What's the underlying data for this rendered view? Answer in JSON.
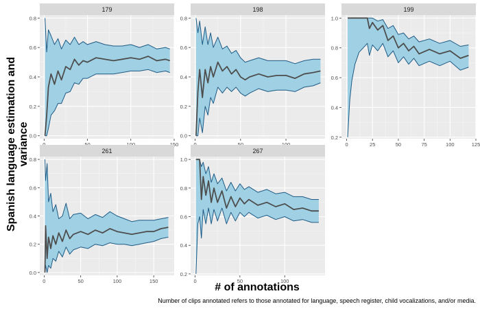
{
  "figure": {
    "ylabel": "Spanish language estimation and variance",
    "xlabel": "# of annotations",
    "caption": "Number of clips annotated refers to those annotated for language, speech register, child vocalizations, and/or media."
  },
  "colors": {
    "ribbon": "#9fd0e3",
    "ribbon_edge": "#1e5a85",
    "mean_line": "#4d4d4d",
    "panel_bg": "#ebebeb",
    "strip_bg": "#d9d9d9",
    "grid_major": "#ffffff"
  },
  "chart_data": [
    {
      "type": "line",
      "panel": "179",
      "xlim": [
        -5,
        150
      ],
      "ylim": [
        -0.02,
        0.82
      ],
      "xticks": [
        0,
        50,
        100,
        150
      ],
      "yticks": [
        0.0,
        0.2,
        0.4,
        0.6,
        0.8
      ],
      "ytick_labels": [
        "0.0",
        "0.2",
        "0.4",
        "0.6",
        "0.8"
      ],
      "series": [
        {
          "role": "mean",
          "x": [
            1,
            3,
            5,
            8,
            12,
            16,
            20,
            25,
            30,
            35,
            40,
            45,
            50,
            60,
            70,
            80,
            90,
            100,
            110,
            120,
            130,
            140,
            145
          ],
          "y": [
            0.0,
            0.14,
            0.33,
            0.42,
            0.35,
            0.44,
            0.38,
            0.47,
            0.45,
            0.52,
            0.48,
            0.51,
            0.5,
            0.53,
            0.52,
            0.51,
            0.52,
            0.53,
            0.52,
            0.54,
            0.51,
            0.52,
            0.51
          ]
        },
        {
          "role": "upper",
          "x": [
            1,
            3,
            5,
            8,
            12,
            16,
            20,
            25,
            30,
            35,
            40,
            45,
            50,
            60,
            70,
            80,
            90,
            100,
            110,
            120,
            130,
            140,
            145
          ],
          "y": [
            0.8,
            0.57,
            0.72,
            0.68,
            0.62,
            0.66,
            0.59,
            0.65,
            0.62,
            0.67,
            0.62,
            0.64,
            0.62,
            0.64,
            0.62,
            0.61,
            0.61,
            0.62,
            0.6,
            0.62,
            0.59,
            0.6,
            0.59
          ]
        },
        {
          "role": "lower",
          "x": [
            1,
            3,
            5,
            8,
            12,
            16,
            20,
            25,
            30,
            35,
            40,
            45,
            50,
            60,
            70,
            80,
            90,
            100,
            110,
            120,
            130,
            140,
            145
          ],
          "y": [
            0.0,
            0.0,
            0.05,
            0.14,
            0.17,
            0.22,
            0.22,
            0.29,
            0.3,
            0.36,
            0.35,
            0.39,
            0.39,
            0.42,
            0.42,
            0.42,
            0.43,
            0.44,
            0.44,
            0.45,
            0.43,
            0.44,
            0.43
          ]
        }
      ]
    },
    {
      "type": "line",
      "panel": "198",
      "xlim": [
        -5,
        143
      ],
      "ylim": [
        -0.02,
        0.82
      ],
      "xticks": [
        0,
        50,
        100
      ],
      "yticks": [
        0.0,
        0.2,
        0.4,
        0.6,
        0.8
      ],
      "ytick_labels": [
        "0.0",
        "0.2",
        "0.4",
        "0.6",
        "0.8"
      ],
      "series": [
        {
          "role": "mean",
          "x": [
            1,
            3,
            5,
            8,
            11,
            14,
            17,
            20,
            25,
            30,
            35,
            40,
            45,
            50,
            55,
            60,
            70,
            80,
            90,
            100,
            110,
            120,
            130,
            138
          ],
          "y": [
            0.0,
            0.3,
            0.45,
            0.26,
            0.45,
            0.36,
            0.47,
            0.4,
            0.5,
            0.44,
            0.47,
            0.42,
            0.45,
            0.4,
            0.38,
            0.4,
            0.42,
            0.4,
            0.41,
            0.41,
            0.39,
            0.42,
            0.43,
            0.44
          ]
        },
        {
          "role": "upper",
          "x": [
            1,
            3,
            5,
            8,
            11,
            14,
            17,
            20,
            25,
            30,
            35,
            40,
            45,
            50,
            55,
            60,
            70,
            80,
            90,
            100,
            110,
            120,
            130,
            138
          ],
          "y": [
            0.8,
            0.7,
            0.78,
            0.62,
            0.74,
            0.62,
            0.7,
            0.6,
            0.67,
            0.59,
            0.61,
            0.56,
            0.58,
            0.53,
            0.5,
            0.51,
            0.53,
            0.51,
            0.51,
            0.51,
            0.49,
            0.51,
            0.52,
            0.52
          ]
        },
        {
          "role": "lower",
          "x": [
            1,
            3,
            5,
            8,
            11,
            14,
            17,
            20,
            25,
            30,
            35,
            40,
            45,
            50,
            55,
            60,
            70,
            80,
            90,
            100,
            110,
            120,
            130,
            138
          ],
          "y": [
            0.0,
            0.0,
            0.12,
            0.02,
            0.2,
            0.14,
            0.26,
            0.22,
            0.33,
            0.29,
            0.33,
            0.3,
            0.33,
            0.29,
            0.27,
            0.29,
            0.32,
            0.3,
            0.31,
            0.31,
            0.3,
            0.33,
            0.34,
            0.36
          ]
        }
      ]
    },
    {
      "type": "line",
      "panel": "199",
      "xlim": [
        -5,
        125
      ],
      "ylim": [
        0.19,
        1.02
      ],
      "xticks": [
        0,
        25,
        50,
        75,
        100,
        125
      ],
      "yticks": [
        0.2,
        0.4,
        0.6,
        0.8,
        1.0
      ],
      "ytick_labels": [
        "0.2",
        "0.4",
        "0.6",
        "0.8",
        "1.0"
      ],
      "series": [
        {
          "role": "mean",
          "x": [
            1,
            5,
            10,
            15,
            20,
            22,
            25,
            30,
            35,
            40,
            45,
            50,
            55,
            60,
            65,
            70,
            80,
            90,
            100,
            110,
            118
          ],
          "y": [
            1.0,
            1.0,
            1.0,
            1.0,
            1.0,
            0.93,
            0.97,
            0.92,
            0.95,
            0.85,
            0.88,
            0.8,
            0.83,
            0.78,
            0.81,
            0.76,
            0.79,
            0.76,
            0.78,
            0.73,
            0.75
          ]
        },
        {
          "role": "upper",
          "x": [
            1,
            5,
            10,
            15,
            20,
            22,
            25,
            30,
            35,
            40,
            45,
            50,
            55,
            60,
            65,
            70,
            80,
            90,
            100,
            110,
            118
          ],
          "y": [
            1.0,
            1.0,
            1.0,
            1.0,
            1.0,
            1.0,
            1.0,
            0.98,
            0.99,
            0.93,
            0.95,
            0.89,
            0.9,
            0.86,
            0.88,
            0.84,
            0.86,
            0.83,
            0.85,
            0.81,
            0.82
          ]
        },
        {
          "role": "lower",
          "x": [
            1,
            3,
            5,
            8,
            12,
            16,
            20,
            22,
            25,
            30,
            35,
            40,
            45,
            50,
            55,
            60,
            65,
            70,
            80,
            90,
            100,
            110,
            118
          ],
          "y": [
            0.2,
            0.45,
            0.58,
            0.69,
            0.77,
            0.8,
            0.83,
            0.75,
            0.82,
            0.78,
            0.83,
            0.74,
            0.78,
            0.7,
            0.74,
            0.69,
            0.73,
            0.68,
            0.71,
            0.68,
            0.71,
            0.65,
            0.67
          ]
        }
      ]
    },
    {
      "type": "line",
      "panel": "261",
      "xlim": [
        -6,
        178
      ],
      "ylim": [
        -0.02,
        0.82
      ],
      "xticks": [
        0,
        50,
        100,
        150
      ],
      "yticks": [
        0.0,
        0.2,
        0.4,
        0.6,
        0.8
      ],
      "ytick_labels": [
        "0.0",
        "0.2",
        "0.4",
        "0.6",
        "0.8"
      ],
      "series": [
        {
          "role": "mean",
          "x": [
            1,
            2,
            4,
            6,
            9,
            12,
            16,
            20,
            25,
            30,
            35,
            40,
            50,
            60,
            70,
            80,
            90,
            100,
            110,
            120,
            130,
            140,
            150,
            160,
            170
          ],
          "y": [
            0.0,
            0.33,
            0.1,
            0.25,
            0.17,
            0.26,
            0.2,
            0.28,
            0.22,
            0.3,
            0.24,
            0.27,
            0.29,
            0.27,
            0.3,
            0.28,
            0.31,
            0.29,
            0.28,
            0.27,
            0.28,
            0.29,
            0.29,
            0.31,
            0.32
          ]
        },
        {
          "role": "upper",
          "x": [
            1,
            2,
            4,
            6,
            9,
            12,
            16,
            20,
            25,
            30,
            35,
            40,
            50,
            60,
            70,
            80,
            90,
            100,
            110,
            120,
            130,
            140,
            150,
            160,
            170
          ],
          "y": [
            0.8,
            0.65,
            0.77,
            0.5,
            0.56,
            0.43,
            0.48,
            0.38,
            0.4,
            0.49,
            0.38,
            0.41,
            0.42,
            0.38,
            0.41,
            0.39,
            0.43,
            0.4,
            0.38,
            0.36,
            0.37,
            0.37,
            0.37,
            0.38,
            0.39
          ]
        },
        {
          "role": "lower",
          "x": [
            1,
            2,
            4,
            6,
            9,
            12,
            16,
            20,
            25,
            30,
            35,
            40,
            50,
            60,
            70,
            80,
            90,
            100,
            110,
            120,
            130,
            140,
            150,
            160,
            170
          ],
          "y": [
            0.0,
            0.05,
            0.0,
            0.05,
            0.03,
            0.1,
            0.08,
            0.15,
            0.11,
            0.18,
            0.13,
            0.16,
            0.18,
            0.17,
            0.2,
            0.19,
            0.21,
            0.2,
            0.2,
            0.19,
            0.2,
            0.21,
            0.22,
            0.24,
            0.25
          ]
        }
      ]
    },
    {
      "type": "line",
      "panel": "267",
      "xlim": [
        -5,
        145
      ],
      "ylim": [
        0.19,
        1.02
      ],
      "xticks": [
        0,
        50,
        100
      ],
      "yticks": [
        0.2,
        0.4,
        0.6,
        0.8,
        1.0
      ],
      "ytick_labels": [
        "0.2",
        "0.4",
        "0.6",
        "0.8",
        "1.0"
      ],
      "series": [
        {
          "role": "mean",
          "x": [
            1,
            3,
            5,
            7,
            9,
            12,
            15,
            18,
            21,
            25,
            30,
            35,
            40,
            45,
            50,
            55,
            60,
            70,
            80,
            90,
            100,
            110,
            120,
            130,
            138
          ],
          "y": [
            1.0,
            1.0,
            1.0,
            0.72,
            0.88,
            0.75,
            0.85,
            0.7,
            0.8,
            0.7,
            0.78,
            0.66,
            0.74,
            0.67,
            0.73,
            0.69,
            0.72,
            0.68,
            0.7,
            0.67,
            0.69,
            0.65,
            0.66,
            0.64,
            0.64
          ]
        },
        {
          "role": "upper",
          "x": [
            1,
            3,
            5,
            7,
            9,
            12,
            15,
            18,
            21,
            25,
            30,
            35,
            40,
            45,
            50,
            55,
            60,
            70,
            80,
            90,
            100,
            110,
            120,
            130,
            138
          ],
          "y": [
            1.0,
            1.0,
            1.0,
            0.95,
            0.98,
            0.9,
            0.95,
            0.84,
            0.9,
            0.83,
            0.87,
            0.78,
            0.84,
            0.78,
            0.83,
            0.79,
            0.81,
            0.77,
            0.79,
            0.76,
            0.77,
            0.74,
            0.74,
            0.72,
            0.72
          ]
        },
        {
          "role": "lower",
          "x": [
            1,
            3,
            5,
            7,
            9,
            12,
            15,
            18,
            21,
            25,
            30,
            35,
            40,
            45,
            50,
            55,
            60,
            70,
            80,
            90,
            100,
            110,
            120,
            130,
            138
          ],
          "y": [
            0.2,
            0.55,
            0.6,
            0.45,
            0.65,
            0.55,
            0.66,
            0.55,
            0.65,
            0.57,
            0.66,
            0.55,
            0.63,
            0.57,
            0.63,
            0.6,
            0.63,
            0.59,
            0.61,
            0.58,
            0.6,
            0.57,
            0.58,
            0.56,
            0.56
          ]
        }
      ]
    }
  ]
}
